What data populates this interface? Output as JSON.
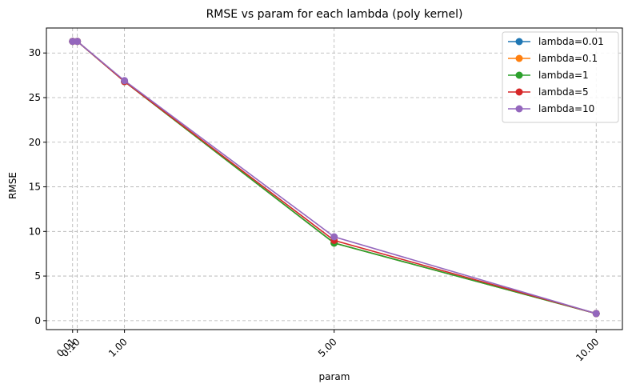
{
  "chart_data": {
    "type": "line",
    "title": "RMSE vs param for each lambda (poly kernel)",
    "xlabel": "param",
    "ylabel": "RMSE",
    "x": [
      0.01,
      0.1,
      1.0,
      5.0,
      10.0
    ],
    "x_tick_labels": [
      "0.01",
      "0.10",
      "1.00",
      "5.00",
      "10.00"
    ],
    "y_ticks": [
      0,
      5,
      10,
      15,
      20,
      25,
      30
    ],
    "xlim": [
      -0.49,
      10.5
    ],
    "ylim": [
      -1.0,
      32.8
    ],
    "grid": true,
    "legend_position": "top-right",
    "series": [
      {
        "name": "lambda=0.01",
        "color": "#1f77b4",
        "values": [
          31.3,
          31.3,
          26.8,
          8.7,
          0.8
        ]
      },
      {
        "name": "lambda=0.1",
        "color": "#ff7f0e",
        "values": [
          31.3,
          31.3,
          26.8,
          8.7,
          0.8
        ]
      },
      {
        "name": "lambda=1",
        "color": "#2ca02c",
        "values": [
          31.3,
          31.3,
          26.8,
          8.7,
          0.8
        ]
      },
      {
        "name": "lambda=5",
        "color": "#d62728",
        "values": [
          31.3,
          31.3,
          26.8,
          9.0,
          0.8
        ]
      },
      {
        "name": "lambda=10",
        "color": "#9467bd",
        "values": [
          31.3,
          31.3,
          26.9,
          9.4,
          0.8
        ]
      }
    ]
  }
}
